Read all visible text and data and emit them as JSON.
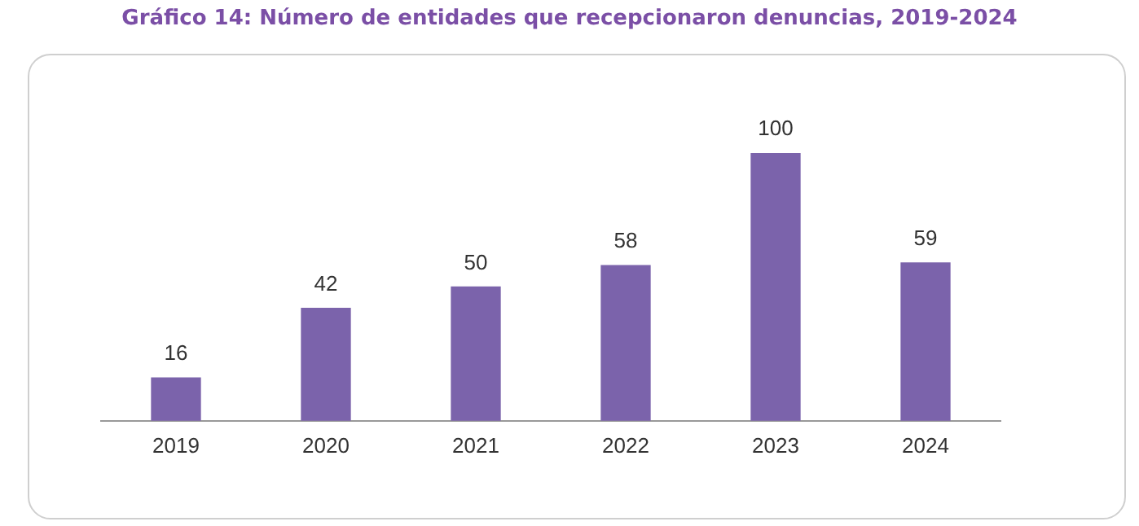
{
  "chart_data": {
    "type": "bar",
    "title": "Gráfico 14: Número de entidades que recepcionaron denuncias, 2019-2024",
    "categories": [
      "2019",
      "2020",
      "2021",
      "2022",
      "2023",
      "2024"
    ],
    "values": [
      16,
      42,
      50,
      58,
      100,
      59
    ],
    "color": "#7b63ab",
    "data_labels": true,
    "grid": false,
    "legend": false,
    "tick_labels": "x"
  }
}
